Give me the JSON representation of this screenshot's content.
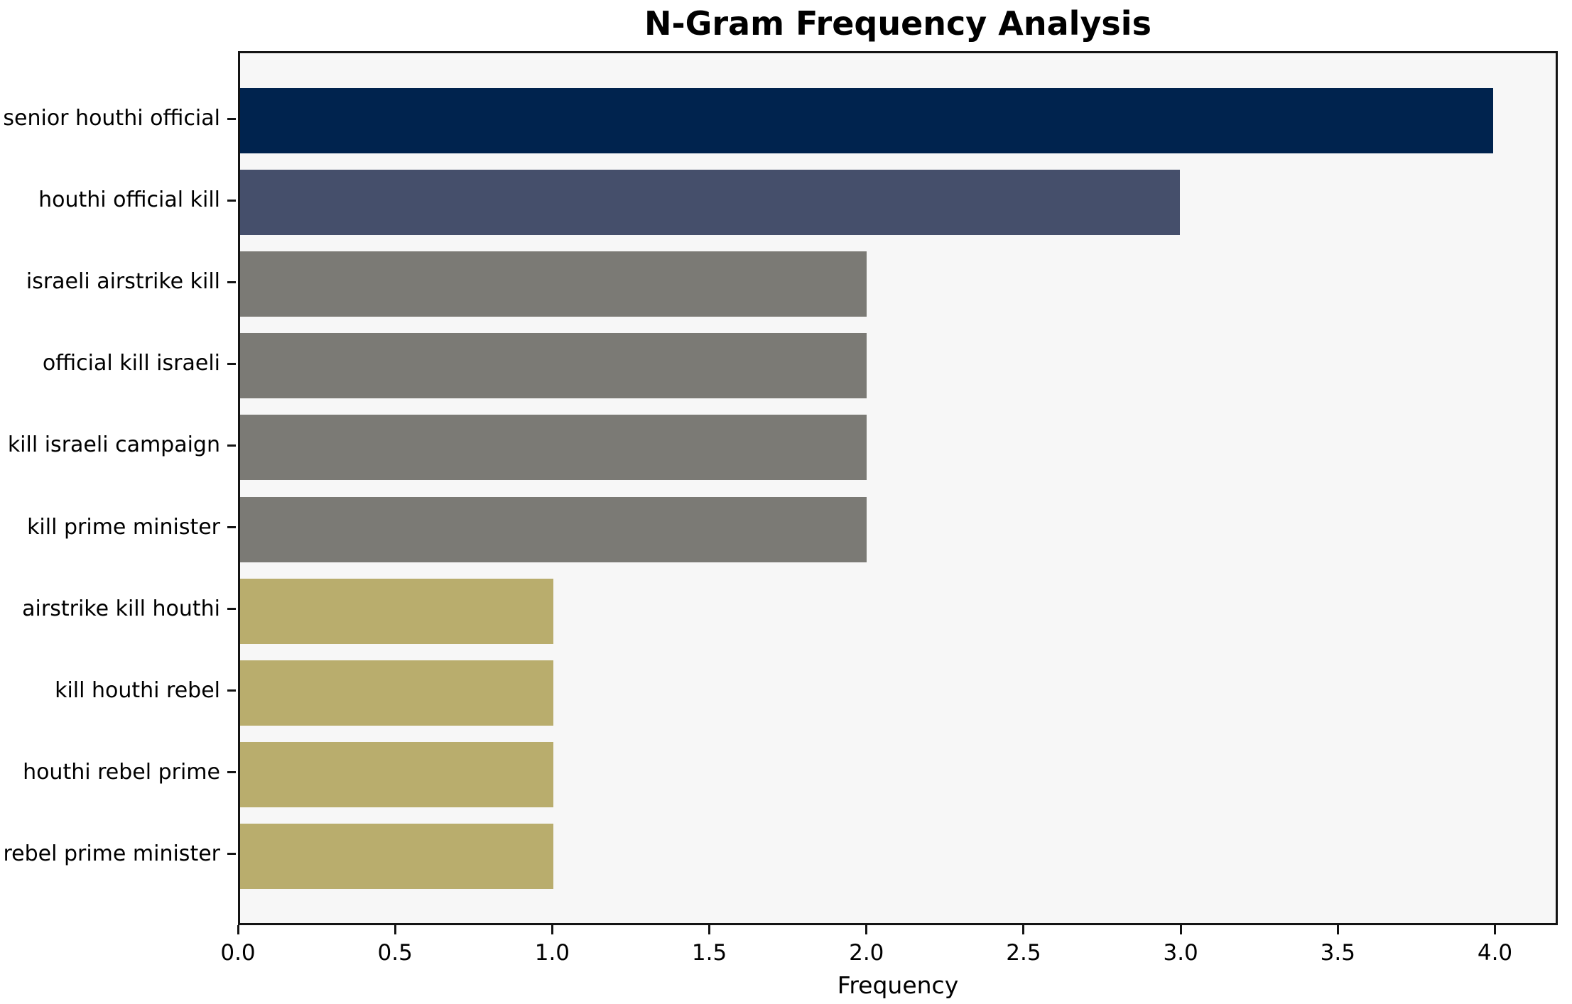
{
  "chart_data": {
    "type": "bar",
    "orientation": "horizontal",
    "title": "N-Gram Frequency Analysis",
    "xlabel": "Frequency",
    "ylabel": "",
    "categories": [
      "senior houthi official",
      "houthi official kill",
      "israeli airstrike kill",
      "official kill israeli",
      "kill israeli campaign",
      "kill prime minister",
      "airstrike kill houthi",
      "kill houthi rebel",
      "houthi rebel prime",
      "rebel prime minister"
    ],
    "values": [
      4,
      3,
      2,
      2,
      2,
      2,
      1,
      1,
      1,
      1
    ],
    "bar_colors": [
      "#00234E",
      "#454F6B",
      "#7B7A75",
      "#7B7A75",
      "#7B7A75",
      "#7B7A75",
      "#B9AD6D",
      "#B9AD6D",
      "#B9AD6D",
      "#B9AD6D"
    ],
    "xlim": [
      0,
      4.2
    ],
    "xticks": [
      0.0,
      0.5,
      1.0,
      1.5,
      2.0,
      2.5,
      3.0,
      3.5,
      4.0
    ],
    "xtick_labels": [
      "0.0",
      "0.5",
      "1.0",
      "1.5",
      "2.0",
      "2.5",
      "3.0",
      "3.5",
      "4.0"
    ],
    "grid": false,
    "legend": null,
    "plot_background": "#F7F7F7",
    "figure_background": "#FFFFFF",
    "spine_color": "#141414"
  }
}
